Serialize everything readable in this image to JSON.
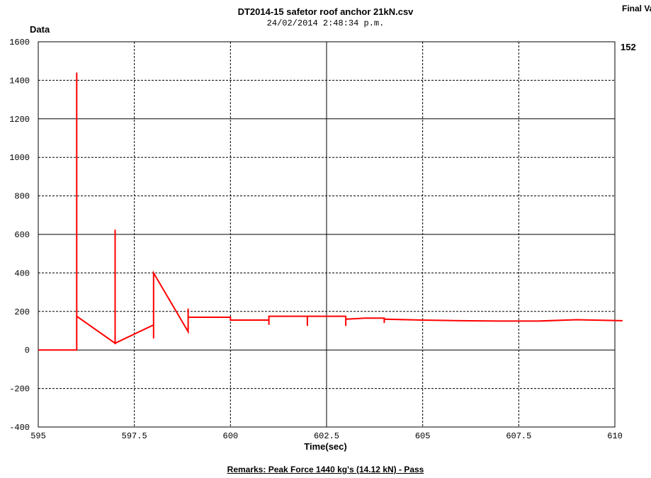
{
  "chart_data": {
    "type": "line",
    "title": "DT2014-15 safetor roof anchor 21kN.csv",
    "subtitle": "24/02/2014 2:48:34 p.m.",
    "ylabel": "Data",
    "xlabel": "Time(sec)",
    "xlim": [
      595,
      610
    ],
    "ylim": [
      -400,
      1600
    ],
    "xticks": [
      595,
      597.5,
      600,
      602.5,
      605,
      607.5,
      610
    ],
    "xtick_labels": [
      "595",
      "597.5",
      "600",
      "602.5",
      "605",
      "607.5",
      "610"
    ],
    "yticks": [
      -400,
      -200,
      0,
      200,
      400,
      600,
      800,
      1000,
      1200,
      1400,
      1600
    ],
    "ytick_labels": [
      "-400",
      "-200",
      "0",
      "200",
      "400",
      "600",
      "800",
      "1000",
      "1200",
      "1400",
      "1600"
    ],
    "grid": true,
    "series_color": "#ff0000",
    "series": [
      {
        "x": [
          595,
          596,
          596,
          596,
          597,
          597,
          597,
          598,
          598,
          598,
          598.9,
          598.9,
          598.9,
          600,
          600,
          601,
          601,
          601,
          601,
          602,
          602,
          602,
          602,
          603,
          603,
          603,
          603,
          603.5,
          604,
          604,
          604,
          605,
          606,
          607,
          608,
          609,
          610.2
        ],
        "y": [
          0,
          0,
          1440,
          175,
          35,
          625,
          35,
          130,
          60,
          400,
          95,
          215,
          170,
          170,
          155,
          155,
          130,
          175,
          175,
          175,
          125,
          175,
          175,
          175,
          125,
          160,
          160,
          165,
          165,
          140,
          160,
          155,
          152,
          150,
          150,
          157,
          152
        ]
      }
    ],
    "final_value_label": "Final Value",
    "final_value": "152",
    "remarks": "Remarks: Peak Force 1440 kg's (14.12 kN) - Pass"
  }
}
